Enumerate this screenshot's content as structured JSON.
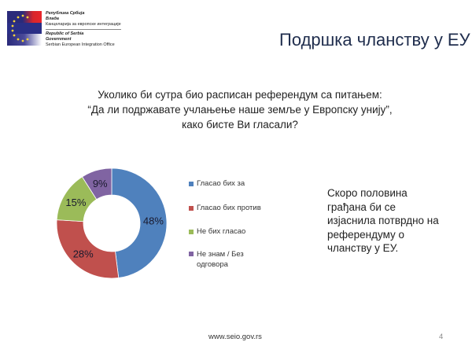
{
  "header": {
    "logo_icon": "serbia-eu-flag-logo",
    "org_lines_sr": [
      "Република Србија",
      "Влада",
      "Канцеларија за европске интеграције"
    ],
    "org_lines_en": [
      "Republic of Serbia",
      "Government",
      "Serbian European Integration Office"
    ]
  },
  "slide": {
    "title": "Подршка чланству у ЕУ",
    "question_lines": [
      "Уколико би сутра био расписан референдум са питањем:",
      "“Да ли подржавате учлањење наше земље у Европску унију”,",
      "како бисте Ви гласали?"
    ],
    "note": "Скоро половина грађана би се изјаснила потврдно на референдуму о чланству у ЕУ."
  },
  "footer": {
    "url": "www.seio.gov.rs",
    "page_number": "4"
  },
  "colors": {
    "title": "#1f2d4d",
    "blue": "#4f81bd",
    "red": "#c0504d",
    "green": "#9bbb59",
    "purple": "#8064a2"
  },
  "chart_data": {
    "type": "pie",
    "subtype": "donut",
    "title": "Уколико би сутра био расписан референдум са питањем: “Да ли подржавате учлањење наше земље у Европску унију”, како бисте Ви гласали?",
    "categories": [
      "Гласао бих за",
      "Гласао бих против",
      "Не бих гласао",
      "Не знам / Без одговора"
    ],
    "values": [
      48,
      28,
      15,
      9
    ],
    "labels": [
      "48%",
      "28%",
      "15%",
      "9%"
    ],
    "colors": [
      "#4f81bd",
      "#c0504d",
      "#9bbb59",
      "#8064a2"
    ],
    "legend_position": "right",
    "start_angle": "12 o'clock, clockwise"
  }
}
